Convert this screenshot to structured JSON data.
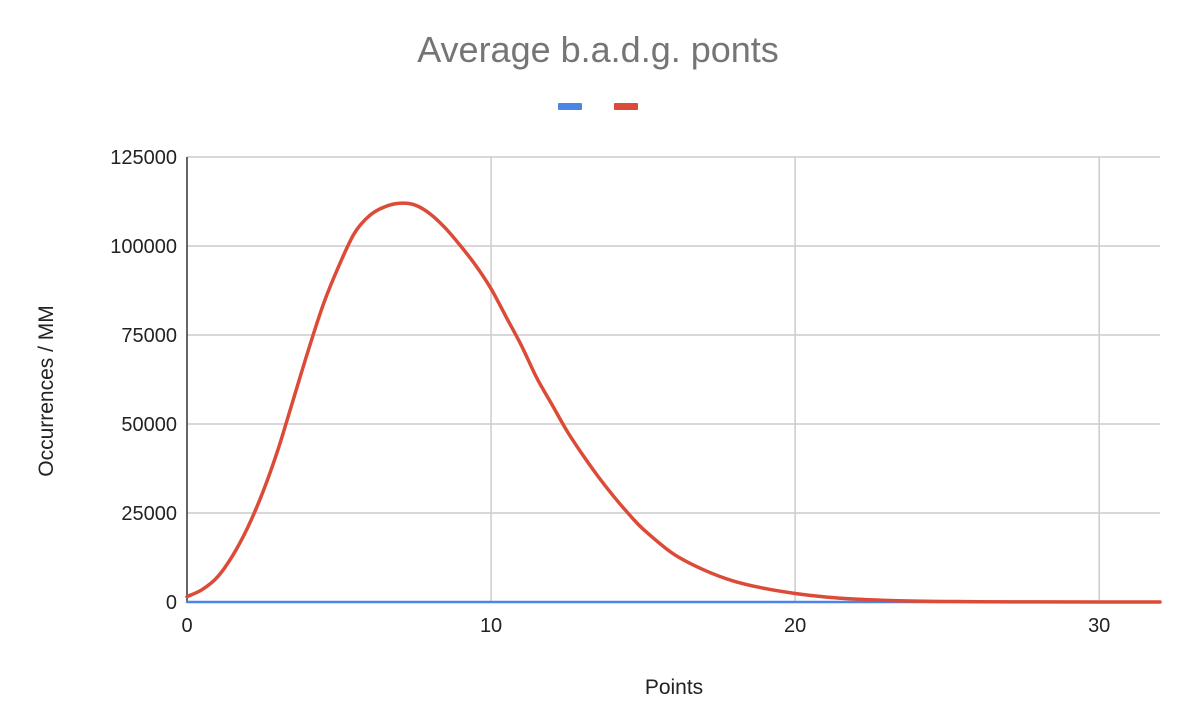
{
  "chart_data": {
    "type": "line",
    "title": "Average b.a.d.g. ponts",
    "xlabel": "Points",
    "ylabel": "Occurrences / MM",
    "xlim": [
      0,
      32
    ],
    "ylim": [
      0,
      125000
    ],
    "x_ticks": [
      "0",
      "10",
      "20",
      "30"
    ],
    "y_ticks": [
      "0",
      "25000",
      "50000",
      "75000",
      "100000",
      "125000"
    ],
    "grid": true,
    "legend_position": "top",
    "series": [
      {
        "color": "#4a86e8",
        "x": [
          0,
          5,
          10,
          15,
          20,
          25,
          30,
          32
        ],
        "y": [
          0,
          0,
          0,
          0,
          0,
          0,
          0,
          0
        ]
      },
      {
        "color": "#db4b37",
        "x": [
          0,
          0.5,
          1,
          1.5,
          2,
          2.5,
          3,
          3.5,
          4,
          4.5,
          5,
          5.5,
          6,
          6.5,
          7,
          7.5,
          8,
          8.5,
          9,
          9.5,
          10,
          10.5,
          11,
          11.5,
          12,
          12.5,
          13,
          13.5,
          14,
          14.5,
          15,
          16,
          17,
          18,
          19,
          20,
          21,
          22,
          23,
          24,
          25,
          26,
          28,
          30,
          32
        ],
        "y": [
          1500,
          3500,
          7000,
          13000,
          21000,
          31000,
          43000,
          57000,
          71000,
          84000,
          94500,
          103500,
          108500,
          111000,
          112000,
          111500,
          109000,
          105000,
          100000,
          94500,
          88000,
          80000,
          72000,
          63000,
          55500,
          48000,
          41500,
          35500,
          30000,
          25000,
          20500,
          13500,
          9000,
          5800,
          3800,
          2400,
          1400,
          800,
          450,
          250,
          150,
          80,
          30,
          10,
          0
        ]
      }
    ]
  }
}
